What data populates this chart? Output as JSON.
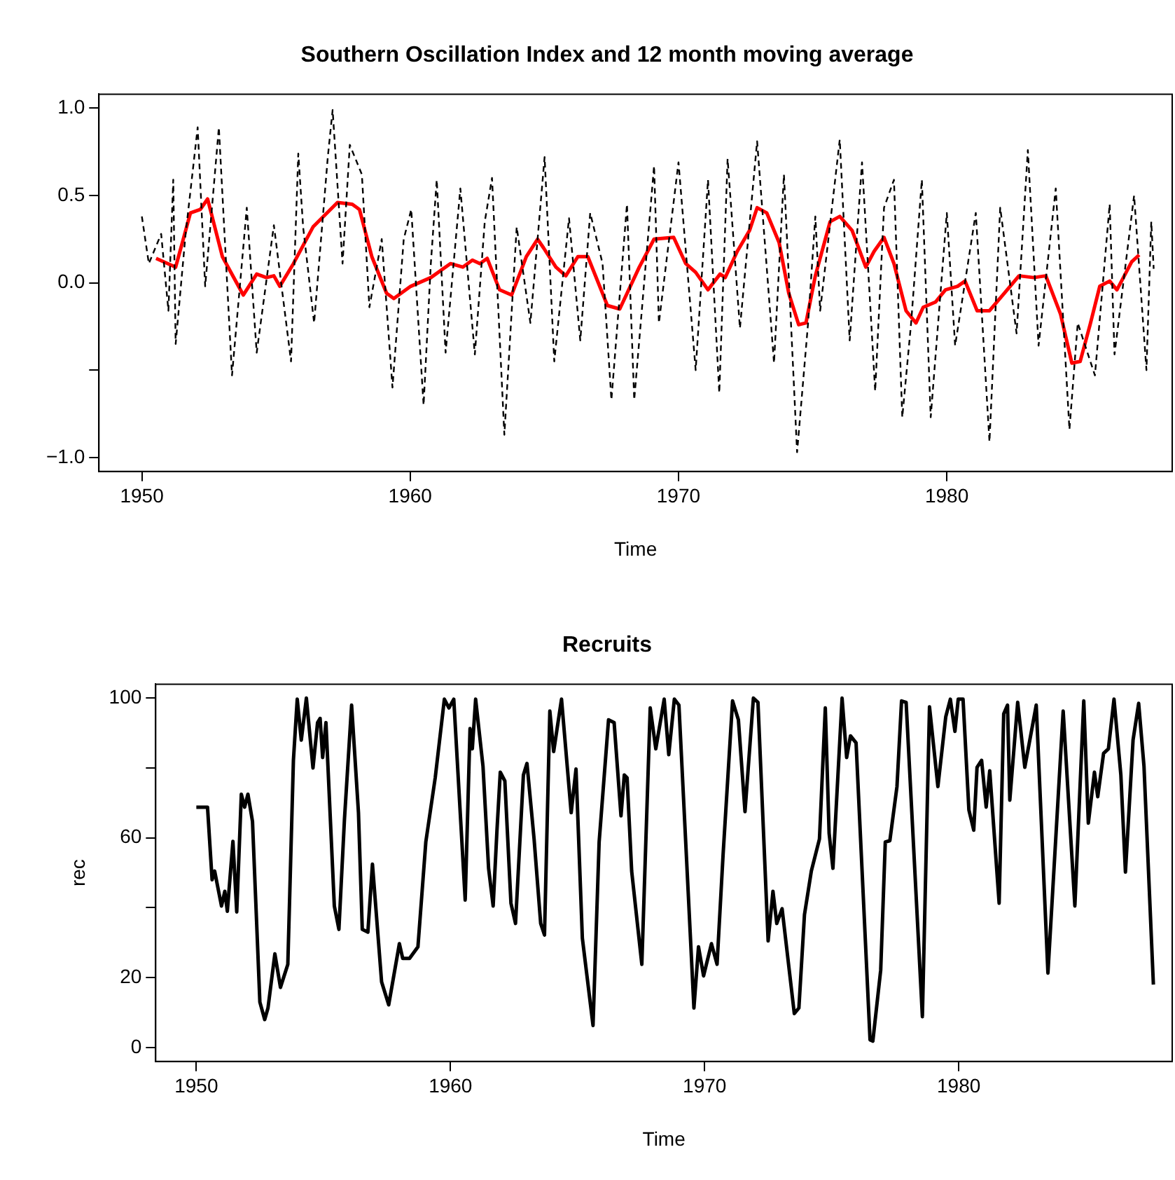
{
  "chart_data": [
    {
      "type": "line",
      "title": "Southern Oscillation Index and 12 month moving average",
      "xlabel": "Time",
      "marker": "none",
      "xlim": [
        1948.4,
        1988.4
      ],
      "ylim": [
        -1.08,
        1.08
      ],
      "xticks": [
        1950,
        1960,
        1970,
        1980
      ],
      "yticks": [
        {
          "value": -1.0,
          "label": "−1.0"
        },
        {
          "value": -0.5,
          "label": null
        },
        {
          "value": 0.0,
          "label": "0.0"
        },
        {
          "value": 0.5,
          "label": "0.5"
        },
        {
          "value": 1.0,
          "label": "1.0"
        }
      ],
      "series": [
        {
          "color": "#000000",
          "line_style": "dashed",
          "x": [
            1950.0,
            1950.26,
            1950.72,
            1950.99,
            1951.17,
            1951.26,
            1951.63,
            1952.08,
            1952.36,
            1952.87,
            1953.36,
            1953.91,
            1954.28,
            1954.92,
            1955.56,
            1955.83,
            1956.01,
            1956.42,
            1956.93,
            1957.11,
            1957.48,
            1957.75,
            1958.2,
            1958.48,
            1958.94,
            1959.34,
            1959.76,
            1960.04,
            1960.5,
            1960.77,
            1960.99,
            1961.32,
            1961.87,
            1962.41,
            1962.78,
            1963.05,
            1963.51,
            1963.97,
            1964.48,
            1965.01,
            1965.37,
            1965.92,
            1966.34,
            1966.71,
            1967.17,
            1967.5,
            1968.08,
            1968.35,
            1969.09,
            1969.27,
            1970.0,
            1970.64,
            1971.1,
            1971.52,
            1971.83,
            1972.29,
            1972.93,
            1973.56,
            1973.93,
            1974.42,
            1974.83,
            1975.1,
            1975.28,
            1976.01,
            1976.38,
            1976.84,
            1977.33,
            1977.66,
            1978.03,
            1978.34,
            1978.67,
            1979.07,
            1979.4,
            1980.0,
            1980.31,
            1981.08,
            1981.59,
            1981.99,
            1982.6,
            1983.02,
            1983.42,
            1984.06,
            1984.57,
            1984.88,
            1985.52,
            1986.07,
            1986.25,
            1986.98,
            1987.44,
            1987.62,
            1987.71
          ],
          "values": [
            0.38,
            0.11,
            0.28,
            -0.16,
            0.59,
            -0.35,
            0.28,
            0.89,
            -0.02,
            0.89,
            -0.53,
            0.43,
            -0.4,
            0.33,
            -0.45,
            0.74,
            0.32,
            -0.23,
            0.72,
            0.99,
            0.11,
            0.79,
            0.62,
            -0.14,
            0.25,
            -0.6,
            0.25,
            0.42,
            -0.7,
            0.11,
            0.59,
            -0.4,
            0.54,
            -0.41,
            0.35,
            0.6,
            -0.87,
            0.32,
            -0.23,
            0.72,
            -0.45,
            0.37,
            -0.33,
            0.4,
            0.11,
            -0.67,
            0.45,
            -0.67,
            0.67,
            -0.23,
            0.69,
            -0.5,
            0.59,
            -0.63,
            0.71,
            -0.26,
            0.81,
            -0.46,
            0.62,
            -0.97,
            -0.23,
            0.38,
            -0.16,
            0.82,
            -0.33,
            0.69,
            -0.62,
            0.43,
            0.59,
            -0.77,
            -0.23,
            0.59,
            -0.77,
            0.4,
            -0.36,
            0.4,
            -0.91,
            0.43,
            -0.29,
            0.76,
            -0.36,
            0.54,
            -0.84,
            -0.23,
            -0.53,
            0.45,
            -0.41,
            0.5,
            -0.5,
            0.35,
            0.08
          ]
        },
        {
          "color": "#ff0000",
          "line_style": "solid",
          "x": [
            1950.53,
            1951.26,
            1951.81,
            1952.18,
            1952.45,
            1953.0,
            1953.78,
            1954.28,
            1954.64,
            1954.92,
            1955.14,
            1955.65,
            1956.38,
            1957.29,
            1957.84,
            1958.11,
            1958.57,
            1959.12,
            1959.39,
            1960.02,
            1960.77,
            1961.5,
            1961.96,
            1962.32,
            1962.6,
            1962.87,
            1963.33,
            1963.78,
            1964.33,
            1964.75,
            1964.97,
            1965.43,
            1965.8,
            1966.25,
            1966.62,
            1967.35,
            1967.81,
            1968.54,
            1969.09,
            1969.82,
            1970.27,
            1970.64,
            1971.1,
            1971.55,
            1971.74,
            1972.19,
            1972.65,
            1972.93,
            1973.29,
            1973.75,
            1974.11,
            1974.48,
            1974.75,
            1975.1,
            1975.65,
            1976.01,
            1976.47,
            1976.98,
            1977.29,
            1977.66,
            1978.03,
            1978.48,
            1978.85,
            1979.12,
            1979.58,
            1979.95,
            1980.4,
            1980.68,
            1981.13,
            1981.59,
            1982.14,
            1982.69,
            1983.24,
            1983.69,
            1984.24,
            1984.66,
            1984.97,
            1985.34,
            1985.7,
            1986.07,
            1986.34,
            1986.89,
            1987.17
          ],
          "values": [
            0.14,
            0.09,
            0.4,
            0.42,
            0.48,
            0.15,
            -0.07,
            0.05,
            0.03,
            0.04,
            -0.02,
            0.11,
            0.32,
            0.46,
            0.45,
            0.42,
            0.15,
            -0.06,
            -0.09,
            -0.02,
            0.03,
            0.11,
            0.09,
            0.13,
            0.11,
            0.14,
            -0.04,
            -0.07,
            0.15,
            0.25,
            0.2,
            0.09,
            0.04,
            0.15,
            0.15,
            -0.13,
            -0.15,
            0.09,
            0.25,
            0.26,
            0.11,
            0.06,
            -0.04,
            0.05,
            0.03,
            0.18,
            0.3,
            0.43,
            0.4,
            0.23,
            -0.06,
            -0.24,
            -0.23,
            0.04,
            0.35,
            0.38,
            0.3,
            0.09,
            0.18,
            0.26,
            0.11,
            -0.16,
            -0.23,
            -0.14,
            -0.11,
            -0.04,
            -0.02,
            0.01,
            -0.16,
            -0.16,
            -0.06,
            0.04,
            0.03,
            0.04,
            -0.18,
            -0.46,
            -0.45,
            -0.24,
            -0.02,
            0.01,
            -0.04,
            0.12,
            0.16
          ]
        }
      ]
    },
    {
      "type": "line",
      "title": "Recruits",
      "xlabel": "Time",
      "ylabel": "rec",
      "marker": "none",
      "xlim": [
        1948.4,
        1988.4
      ],
      "ylim": [
        -4,
        104
      ],
      "xticks": [
        1950,
        1960,
        1970,
        1980
      ],
      "yticks": [
        0,
        20,
        {
          "value": 40,
          "label": null
        },
        60,
        {
          "value": 80,
          "label": null
        },
        100
      ],
      "series": [
        {
          "color": "#000000",
          "line_style": "solid",
          "x": [
            1950.0,
            1950.44,
            1950.62,
            1950.72,
            1950.99,
            1951.12,
            1951.22,
            1951.44,
            1951.59,
            1951.77,
            1951.9,
            1952.03,
            1952.21,
            1952.5,
            1952.69,
            1952.82,
            1953.09,
            1953.31,
            1953.6,
            1953.82,
            1953.97,
            1954.13,
            1954.33,
            1954.59,
            1954.77,
            1954.87,
            1954.97,
            1955.1,
            1955.43,
            1955.61,
            1955.83,
            1956.11,
            1956.38,
            1956.53,
            1956.75,
            1956.93,
            1957.29,
            1957.57,
            1957.99,
            1958.12,
            1958.39,
            1958.72,
            1959.03,
            1959.4,
            1959.76,
            1959.94,
            1960.13,
            1960.58,
            1960.77,
            1960.86,
            1960.99,
            1961.28,
            1961.5,
            1961.68,
            1961.83,
            1961.96,
            1962.14,
            1962.38,
            1962.56,
            1962.87,
            1963.01,
            1963.29,
            1963.55,
            1963.7,
            1963.91,
            1964.06,
            1964.37,
            1964.75,
            1964.94,
            1965.19,
            1965.61,
            1965.85,
            1966.22,
            1966.44,
            1966.71,
            1966.84,
            1966.95,
            1967.13,
            1967.53,
            1967.86,
            1968.08,
            1968.41,
            1968.59,
            1968.81,
            1968.99,
            1969.58,
            1969.76,
            1969.96,
            1970.27,
            1970.49,
            1970.73,
            1971.1,
            1971.33,
            1971.59,
            1971.92,
            1972.1,
            1972.5,
            1972.69,
            1972.84,
            1973.05,
            1973.53,
            1973.71,
            1973.93,
            1974.2,
            1974.52,
            1974.75,
            1974.9,
            1975.05,
            1975.41,
            1975.59,
            1975.74,
            1975.96,
            1976.51,
            1976.62,
            1976.93,
            1977.11,
            1977.29,
            1977.57,
            1977.75,
            1977.93,
            1978.57,
            1978.85,
            1979.18,
            1979.49,
            1979.67,
            1979.85,
            1979.98,
            1980.17,
            1980.4,
            1980.59,
            1980.72,
            1980.9,
            1981.08,
            1981.22,
            1981.59,
            1981.77,
            1981.92,
            1982.01,
            1982.32,
            1982.6,
            1983.05,
            1983.51,
            1984.11,
            1984.57,
            1984.92,
            1985.1,
            1985.34,
            1985.47,
            1985.7,
            1985.89,
            1986.11,
            1986.38,
            1986.56,
            1986.86,
            1987.08,
            1987.29,
            1987.66
          ],
          "values": [
            68.8,
            68.8,
            48,
            50.5,
            40.5,
            44.7,
            39,
            59,
            38.8,
            72.5,
            68.8,
            72.5,
            64.7,
            13,
            8,
            11.3,
            26.8,
            17.2,
            23.8,
            82.2,
            99.7,
            88,
            100,
            80,
            93,
            94.2,
            83,
            93,
            40.5,
            33.8,
            65.5,
            98,
            67.2,
            33.8,
            33,
            52.5,
            18.8,
            12.2,
            29.7,
            25.5,
            25.5,
            28.8,
            58.8,
            77.2,
            99.7,
            97.2,
            99.7,
            42.2,
            91.3,
            85.5,
            99.7,
            80.5,
            51.3,
            40.5,
            62.2,
            78.8,
            76.3,
            41.3,
            35.5,
            78,
            81.3,
            59.7,
            35.5,
            32.2,
            96.3,
            84.7,
            99.7,
            67.2,
            79.7,
            31.3,
            6.3,
            58.8,
            93.8,
            93,
            66.3,
            78,
            77.2,
            50.5,
            23.8,
            97.2,
            85.5,
            99.7,
            83.8,
            99.7,
            98,
            11.3,
            28.8,
            20.5,
            29.7,
            23.8,
            55.5,
            99.2,
            93.8,
            67.5,
            100,
            98.8,
            30.5,
            44.7,
            35.5,
            39.7,
            9.7,
            11.3,
            38,
            50.5,
            59.7,
            97.2,
            61.3,
            51.3,
            100,
            83,
            89.2,
            87.2,
            2.2,
            1.8,
            22.2,
            58.8,
            59.2,
            74.7,
            99.2,
            98.8,
            8.8,
            97.5,
            74.7,
            94.7,
            99.7,
            90.5,
            99.7,
            99.7,
            68,
            62.2,
            80.2,
            82.2,
            68.8,
            79.2,
            41.3,
            95.5,
            98,
            70.8,
            98.8,
            80.2,
            98,
            21.3,
            96.3,
            40.5,
            99.2,
            64.2,
            78.8,
            71.8,
            84.2,
            85.5,
            99.7,
            78,
            50.2,
            88,
            98.5,
            80.5,
            18
          ]
        }
      ]
    }
  ]
}
